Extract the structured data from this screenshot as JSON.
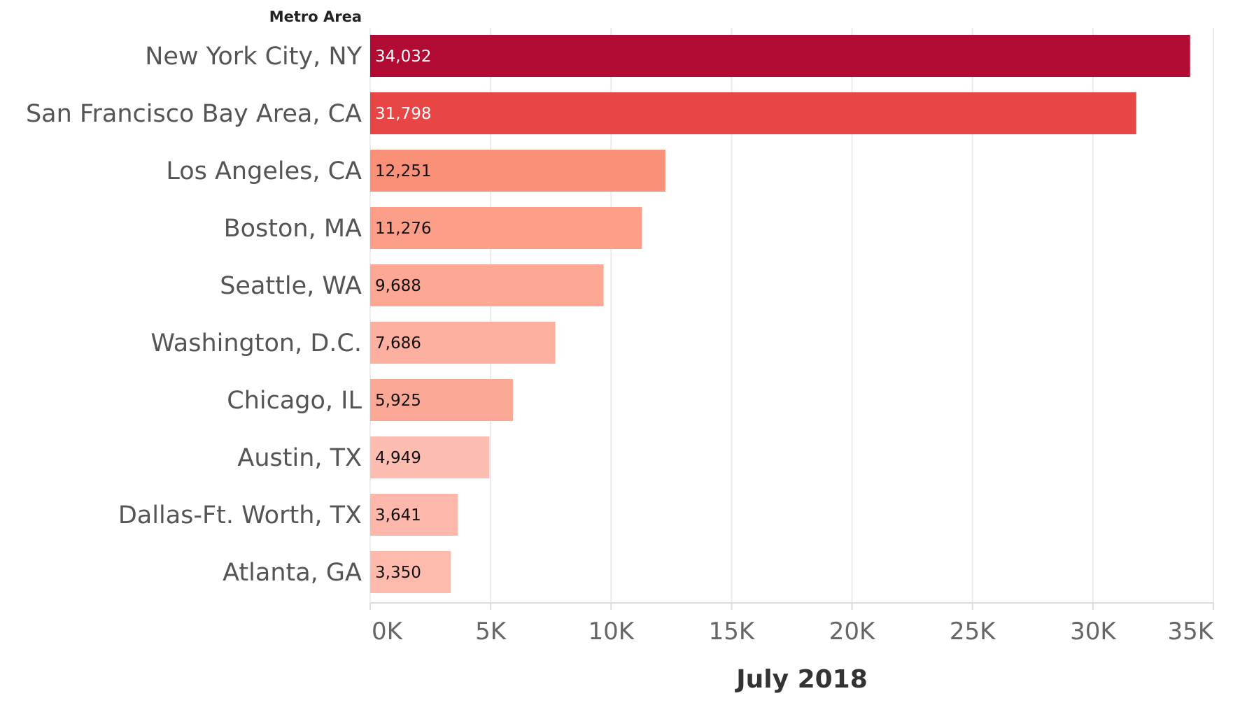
{
  "chart_data": {
    "type": "bar",
    "orientation": "horizontal",
    "row_header": "Metro Area",
    "xlabel": "July 2018",
    "categories": [
      "New York City, NY",
      "San Francisco Bay Area, CA",
      "Los Angeles, CA",
      "Boston, MA",
      "Seattle, WA",
      "Washington, D.C.",
      "Chicago, IL",
      "Austin, TX",
      "Dallas-Ft. Worth, TX",
      "Atlanta, GA"
    ],
    "values": [
      34032,
      31798,
      12251,
      11276,
      9688,
      7686,
      5925,
      4949,
      3641,
      3350
    ],
    "value_labels": [
      "34,032",
      "31,798",
      "12,251",
      "11,276",
      "9,688",
      "7,686",
      "5,925",
      "4,949",
      "3,641",
      "3,350"
    ],
    "bar_colors": [
      "#b10b33",
      "#e84545",
      "#fb9078",
      "#fc9e88",
      "#fca894",
      "#fdb09f",
      "#fca896",
      "#fdbdb0",
      "#fdb8ab",
      "#fdbaad"
    ],
    "label_colors": [
      "#ffffff",
      "#ffffff",
      "#111111",
      "#111111",
      "#111111",
      "#111111",
      "#111111",
      "#111111",
      "#111111",
      "#111111"
    ],
    "xlim": [
      0,
      35000
    ],
    "xticks": [
      0,
      5000,
      10000,
      15000,
      20000,
      25000,
      30000,
      35000
    ],
    "xtick_labels": [
      "0K",
      "5K",
      "10K",
      "15K",
      "20K",
      "25K",
      "30K",
      "35K"
    ],
    "grid": true,
    "legend": "none"
  }
}
